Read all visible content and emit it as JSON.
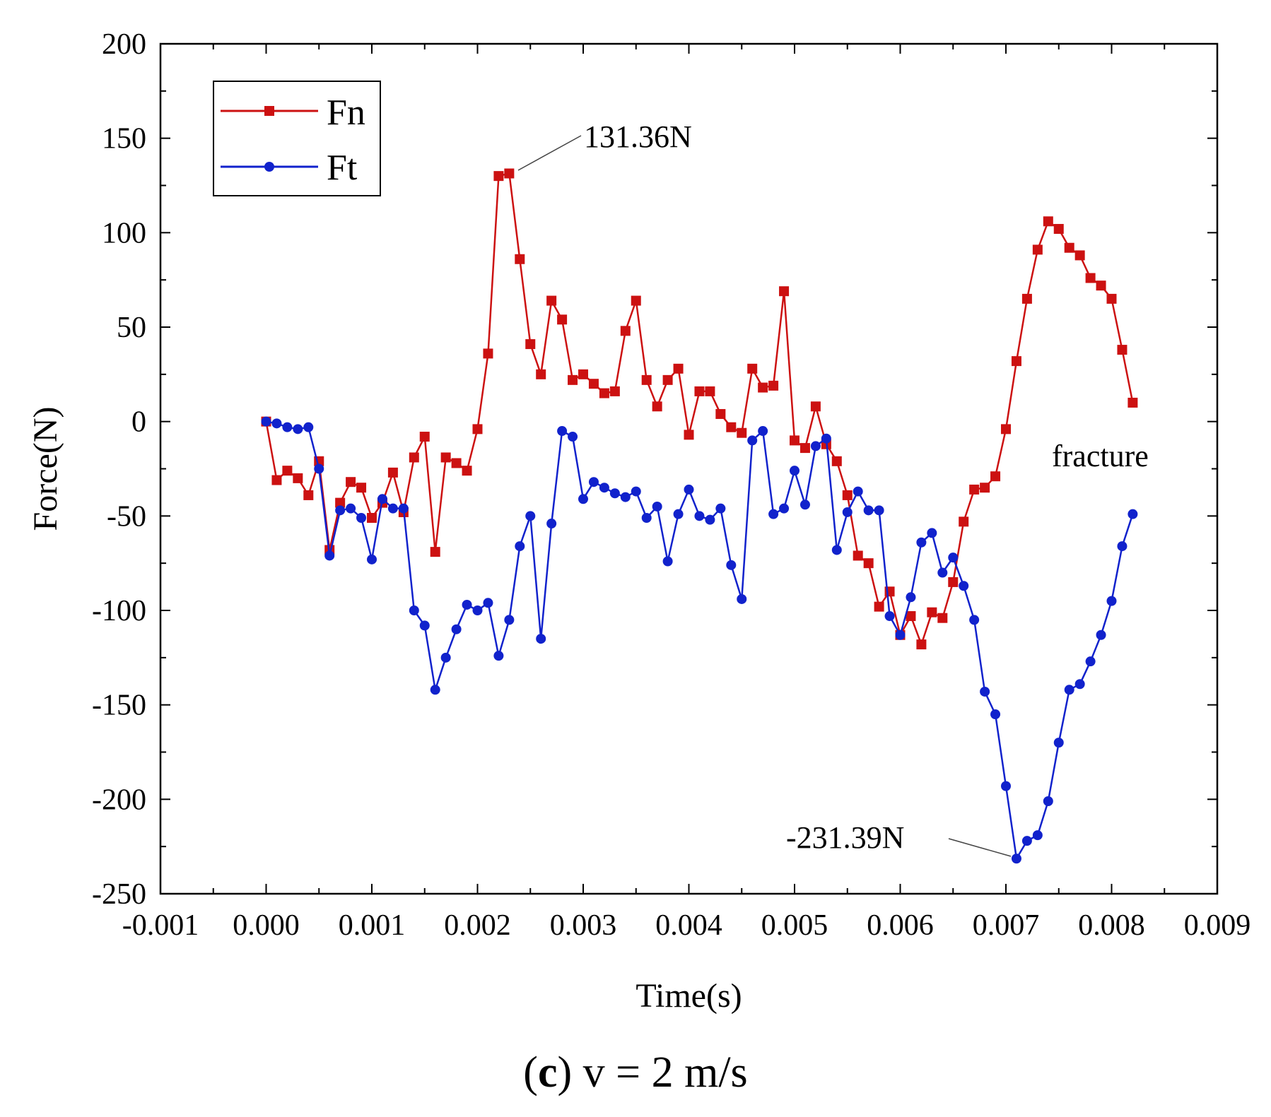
{
  "chart_data": {
    "type": "line",
    "title": "",
    "xlabel": "Time(s)",
    "ylabel": "Force(N)",
    "xlim": [
      -0.001,
      0.009
    ],
    "ylim": [
      -250,
      200
    ],
    "xticks": [
      -0.001,
      0.0,
      0.001,
      0.002,
      0.003,
      0.004,
      0.005,
      0.006,
      0.007,
      0.008,
      0.009
    ],
    "xtick_labels": [
      "-0.001",
      "0.000",
      "0.001",
      "0.002",
      "0.003",
      "0.004",
      "0.005",
      "0.006",
      "0.007",
      "0.008",
      "0.009"
    ],
    "yticks": [
      -250,
      -200,
      -150,
      -100,
      -50,
      0,
      50,
      100,
      150,
      200
    ],
    "ytick_labels": [
      "-250",
      "-200",
      "-150",
      "-100",
      "-50",
      "0",
      "50",
      "100",
      "150",
      "200"
    ],
    "grid": false,
    "legend_position": "top-left",
    "series": [
      {
        "name": "Fn",
        "color": "#cc1111",
        "marker": "square",
        "x": [
          0.0,
          0.0001,
          0.0002,
          0.0003,
          0.0004,
          0.0005,
          0.0006,
          0.0007,
          0.0008,
          0.0009,
          0.001,
          0.0011,
          0.0012,
          0.0013,
          0.0014,
          0.0015,
          0.0016,
          0.0017,
          0.0018,
          0.0019,
          0.002,
          0.0021,
          0.0022,
          0.0023,
          0.0024,
          0.0025,
          0.0026,
          0.0027,
          0.0028,
          0.0029,
          0.003,
          0.0031,
          0.0032,
          0.0033,
          0.0034,
          0.0035,
          0.0036,
          0.0037,
          0.0038,
          0.0039,
          0.004,
          0.0041,
          0.0042,
          0.0043,
          0.0044,
          0.0045,
          0.0046,
          0.0047,
          0.0048,
          0.0049,
          0.005,
          0.0051,
          0.0052,
          0.0053,
          0.0054,
          0.0055,
          0.0056,
          0.0057,
          0.0058,
          0.0059,
          0.006,
          0.0061,
          0.0062,
          0.0063,
          0.0064,
          0.0065,
          0.0066,
          0.0067,
          0.0068,
          0.0069,
          0.007,
          0.0071,
          0.0072,
          0.0073,
          0.0074,
          0.0075,
          0.0076,
          0.0077,
          0.0078,
          0.0079,
          0.008,
          0.0081,
          0.0082
        ],
        "values": [
          0,
          -31,
          -26,
          -30,
          -39,
          -21,
          -68,
          -43,
          -32,
          -35,
          -51,
          -43,
          -27,
          -48,
          -19,
          -8,
          -69,
          -19,
          -22,
          -26,
          -4,
          36,
          130,
          131.36,
          86,
          41,
          25,
          64,
          54,
          22,
          25,
          20,
          15,
          16,
          48,
          64,
          22,
          8,
          22,
          28,
          -7,
          16,
          16,
          4,
          -3,
          -6,
          28,
          18,
          19,
          69,
          -10,
          -14,
          8,
          -12,
          -21,
          -39,
          -71,
          -75,
          -98,
          -90,
          -113,
          -103,
          -118,
          -101,
          -104,
          -85,
          -53,
          -36,
          -35,
          -29,
          -4,
          32,
          65,
          91,
          106,
          102,
          92,
          88,
          76,
          72,
          65,
          38,
          10
        ]
      },
      {
        "name": "Ft",
        "color": "#1122cc",
        "marker": "circle",
        "x": [
          0.0,
          0.0001,
          0.0002,
          0.0003,
          0.0004,
          0.0005,
          0.0006,
          0.0007,
          0.0008,
          0.0009,
          0.001,
          0.0011,
          0.0012,
          0.0013,
          0.0014,
          0.0015,
          0.0016,
          0.0017,
          0.0018,
          0.0019,
          0.002,
          0.0021,
          0.0022,
          0.0023,
          0.0024,
          0.0025,
          0.0026,
          0.0027,
          0.0028,
          0.0029,
          0.003,
          0.0031,
          0.0032,
          0.0033,
          0.0034,
          0.0035,
          0.0036,
          0.0037,
          0.0038,
          0.0039,
          0.004,
          0.0041,
          0.0042,
          0.0043,
          0.0044,
          0.0045,
          0.0046,
          0.0047,
          0.0048,
          0.0049,
          0.005,
          0.0051,
          0.0052,
          0.0053,
          0.0054,
          0.0055,
          0.0056,
          0.0057,
          0.0058,
          0.0059,
          0.006,
          0.0061,
          0.0062,
          0.0063,
          0.0064,
          0.0065,
          0.0066,
          0.0067,
          0.0068,
          0.0069,
          0.007,
          0.0071,
          0.0072,
          0.0073,
          0.0074,
          0.0075,
          0.0076,
          0.0077,
          0.0078,
          0.0079,
          0.008,
          0.0081,
          0.0082
        ],
        "values": [
          0,
          -1,
          -3,
          -4,
          -3,
          -25,
          -71,
          -47,
          -46,
          -51,
          -73,
          -41,
          -46,
          -46,
          -100,
          -108,
          -142,
          -125,
          -110,
          -97,
          -100,
          -96,
          -124,
          -105,
          -66,
          -50,
          -115,
          -54,
          -5,
          -8,
          -41,
          -32,
          -35,
          -38,
          -40,
          -37,
          -51,
          -45,
          -74,
          -49,
          -36,
          -50,
          -52,
          -46,
          -76,
          -94,
          -10,
          -5,
          -49,
          -46,
          -26,
          -44,
          -13,
          -9,
          -68,
          -48,
          -37,
          -47,
          -47,
          -103,
          -113,
          -93,
          -64,
          -59,
          -80,
          -72,
          -87,
          -105,
          -143,
          -155,
          -193,
          -231.39,
          -222,
          -219,
          -201,
          -170,
          -142,
          -139,
          -127,
          -113,
          -95,
          -66,
          -49
        ]
      }
    ],
    "annotations": [
      {
        "text": "131.36N",
        "series": "Fn",
        "x": 0.0023,
        "y": 131.36
      },
      {
        "text": "-231.39N",
        "series": "Ft",
        "x": 0.0071,
        "y": -231.39
      },
      {
        "text": "fracture"
      }
    ],
    "caption": {
      "letter": "c",
      "text": "v = 2 m/s"
    }
  }
}
